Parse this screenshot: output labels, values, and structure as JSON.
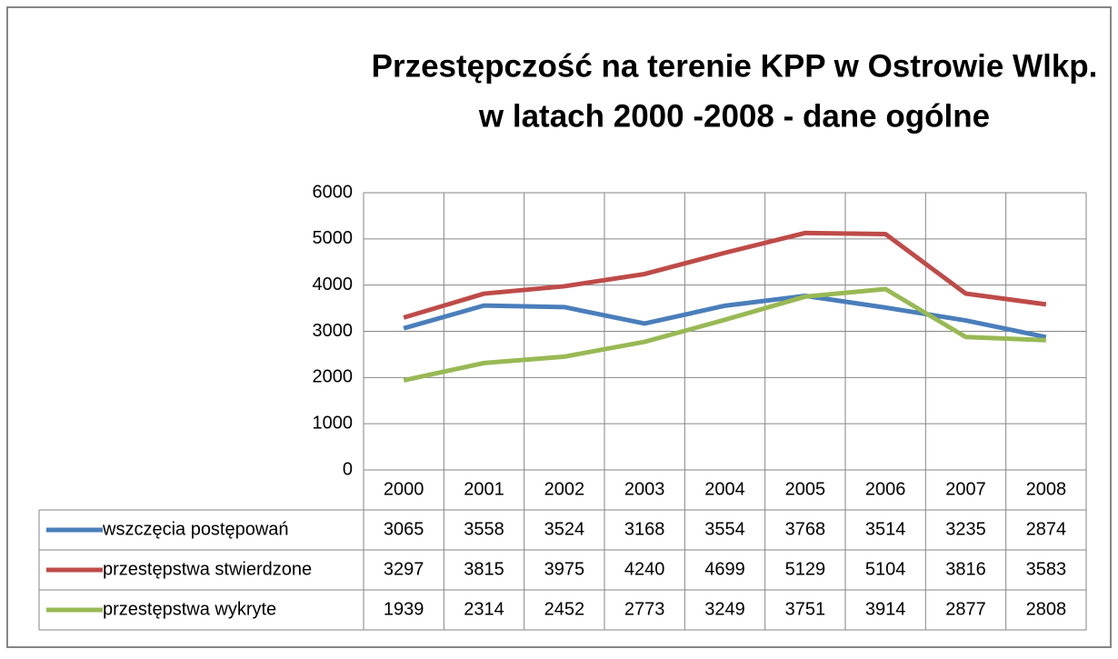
{
  "chart_data": {
    "type": "line",
    "title": [
      "Przestępczość na terenie KPP w Ostrowie Wlkp.",
      "w latach 2000 -2008 - dane ogólne"
    ],
    "categories": [
      "2000",
      "2001",
      "2002",
      "2003",
      "2004",
      "2005",
      "2006",
      "2007",
      "2008"
    ],
    "series": [
      {
        "name": "wszczęcia postępowań",
        "color": "#4a7ebb",
        "values": [
          3065,
          3558,
          3524,
          3168,
          3554,
          3768,
          3514,
          3235,
          2874
        ]
      },
      {
        "name": "przestępstwa stwierdzone",
        "color": "#be4b48",
        "values": [
          3297,
          3815,
          3975,
          4240,
          4699,
          5129,
          5104,
          3816,
          3583
        ]
      },
      {
        "name": "przestępstwa wykryte",
        "color": "#98b954",
        "values": [
          1939,
          2314,
          2452,
          2773,
          3249,
          3751,
          3914,
          2877,
          2808
        ]
      }
    ],
    "ylim": [
      0,
      6000
    ],
    "yticks": [
      0,
      1000,
      2000,
      3000,
      4000,
      5000,
      6000
    ],
    "grid": true,
    "data_table": true
  }
}
